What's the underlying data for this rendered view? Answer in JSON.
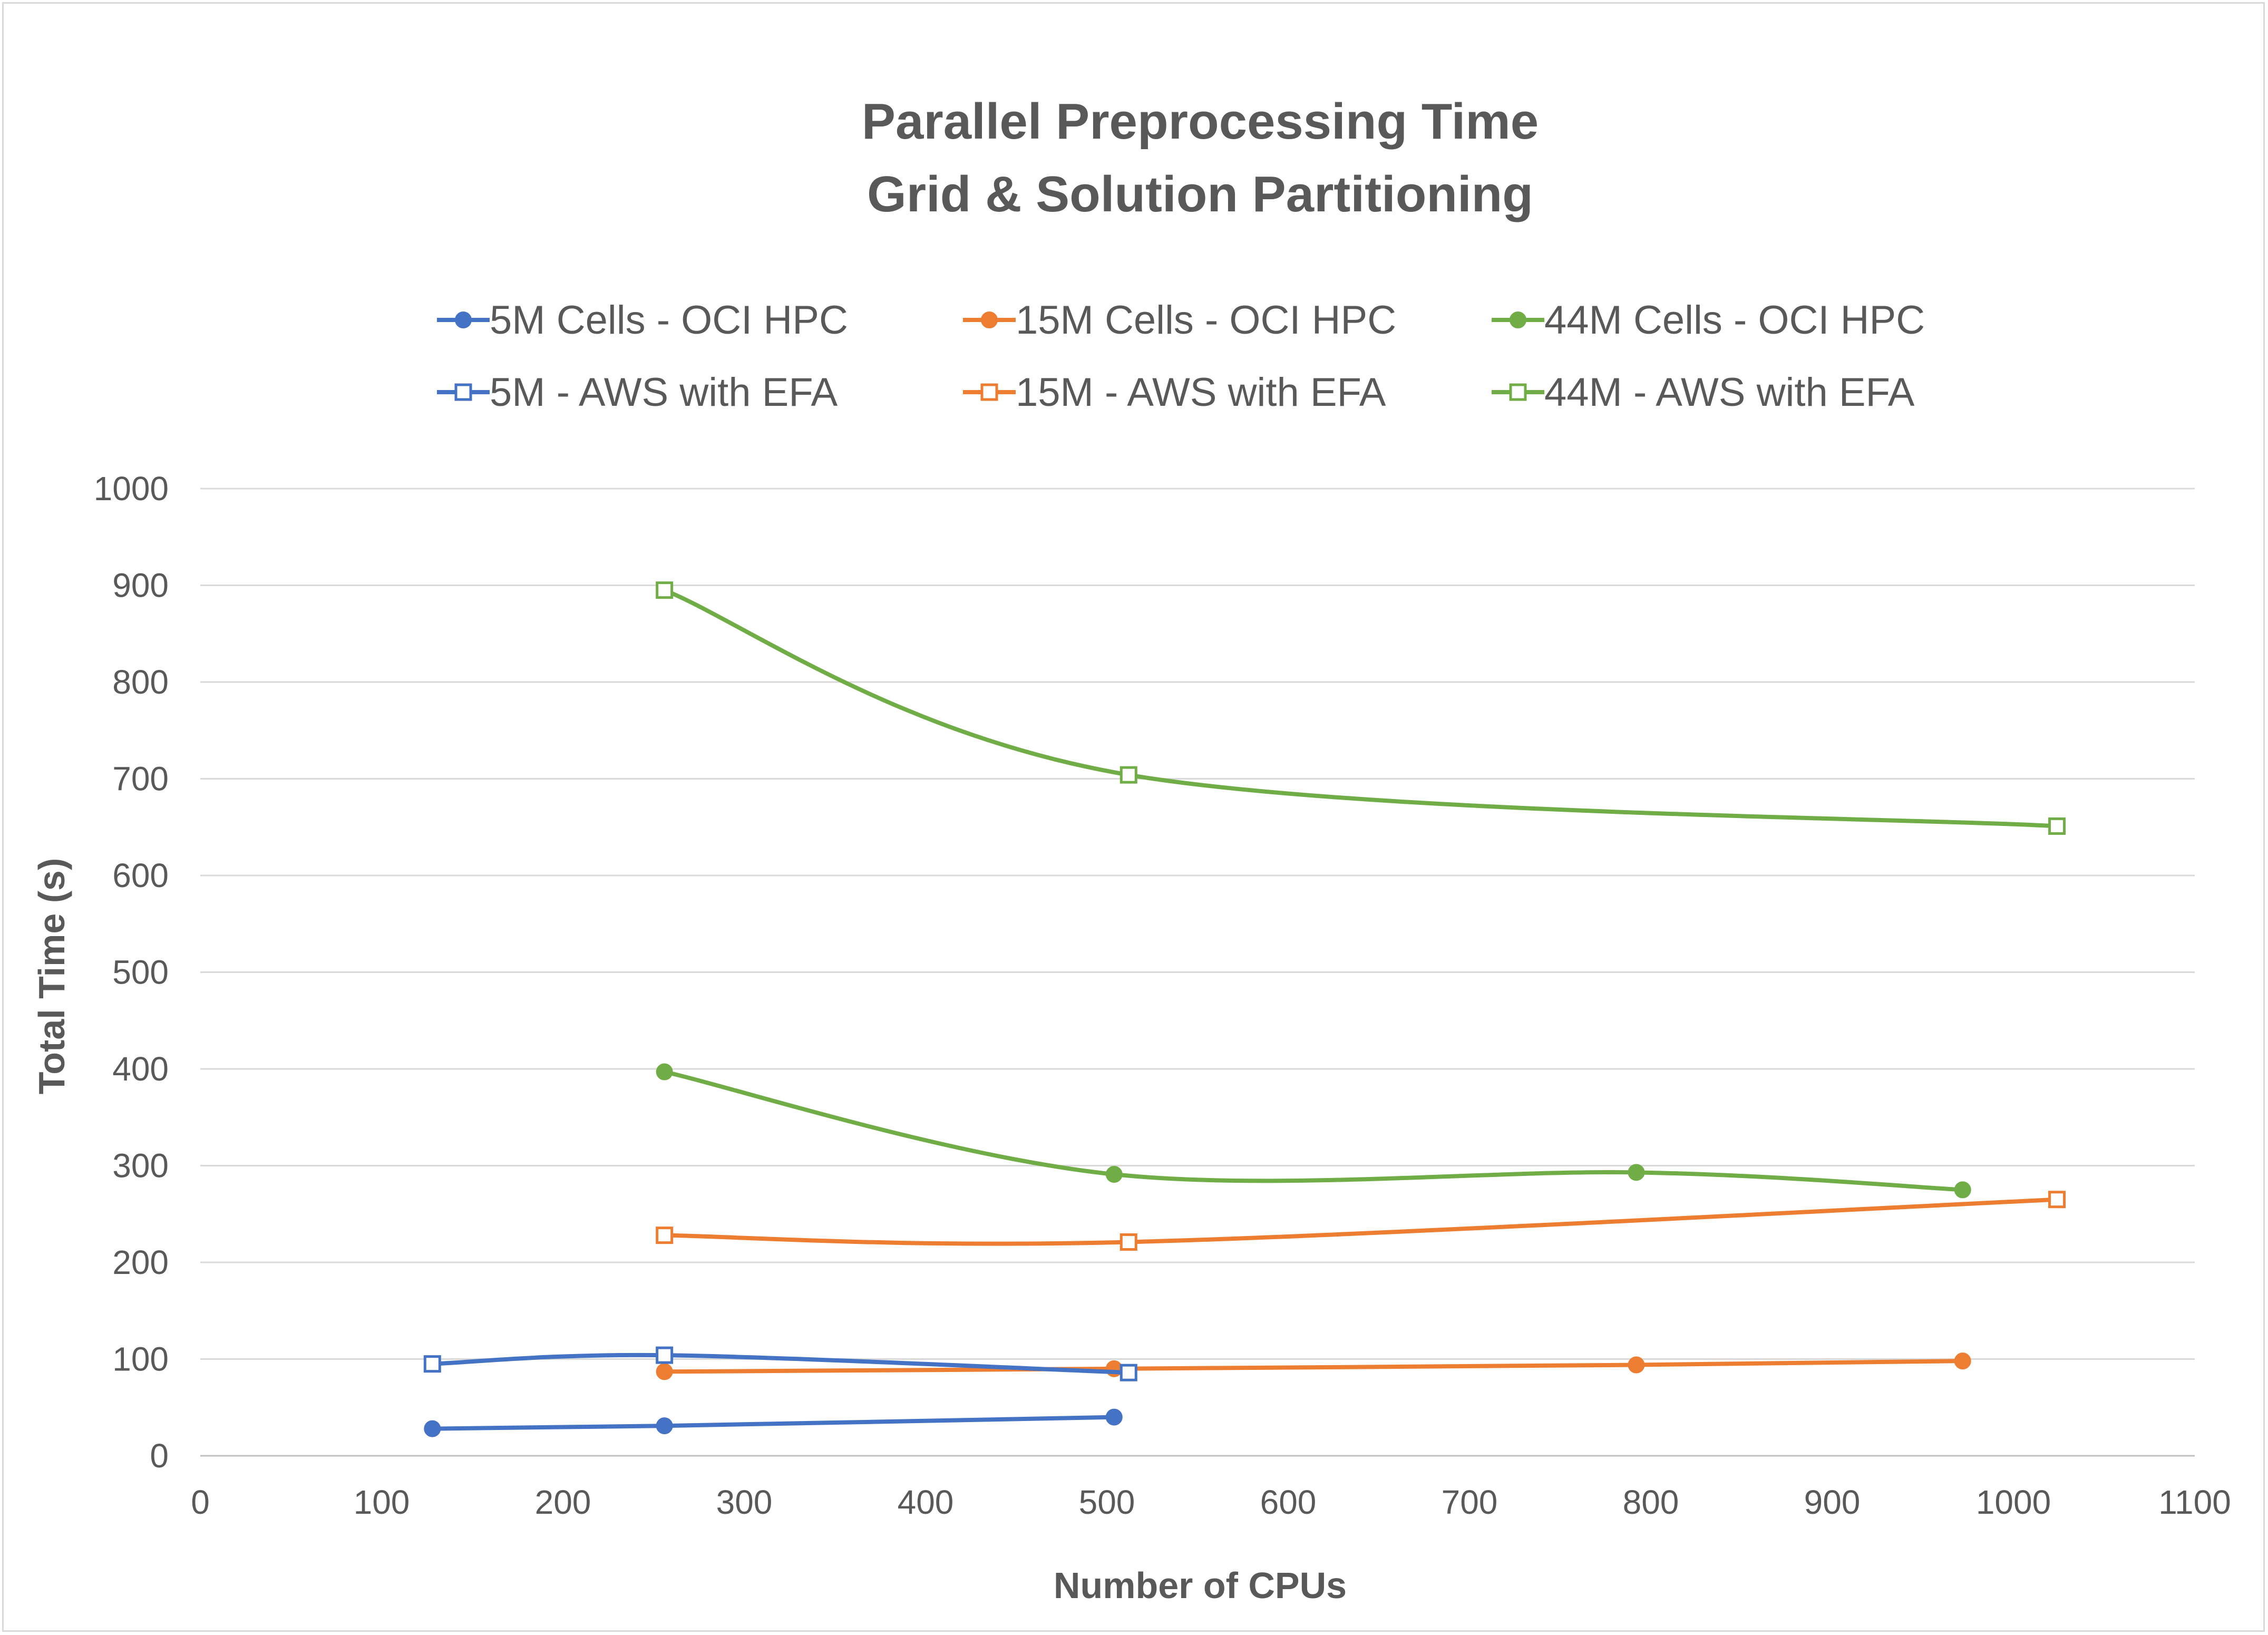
{
  "chart_data": {
    "type": "line",
    "title": [
      "Parallel Preprocessing Time",
      "Grid & Solution Partitioning"
    ],
    "xlabel": "Number of CPUs",
    "ylabel": "Total Time (s)",
    "xlim": [
      0,
      1100
    ],
    "ylim": [
      0,
      1000
    ],
    "xticks": [
      0,
      100,
      200,
      300,
      400,
      500,
      600,
      700,
      800,
      900,
      1000,
      1100
    ],
    "yticks": [
      0,
      100,
      200,
      300,
      400,
      500,
      600,
      700,
      800,
      900,
      1000
    ],
    "grid": "horizontal",
    "legend_position": "top",
    "smooth": true,
    "series": [
      {
        "name": "5M Cells - OCI HPC",
        "color": "#4472c4",
        "marker": "filled-circle",
        "x": [
          128,
          256,
          504
        ],
        "y": [
          28,
          31,
          40
        ]
      },
      {
        "name": "15M Cells - OCI HPC",
        "color": "#ed7d31",
        "marker": "filled-circle",
        "x": [
          256,
          504,
          792,
          972
        ],
        "y": [
          87,
          90,
          94,
          98
        ]
      },
      {
        "name": "44M Cells - OCI HPC",
        "color": "#70ad47",
        "marker": "filled-circle",
        "x": [
          256,
          504,
          792,
          972
        ],
        "y": [
          397,
          291,
          293,
          275
        ]
      },
      {
        "name": "5M - AWS with EFA",
        "color": "#4472c4",
        "marker": "hollow-square",
        "x": [
          128,
          256,
          512
        ],
        "y": [
          95,
          104,
          86
        ]
      },
      {
        "name": "15M - AWS with EFA",
        "color": "#ed7d31",
        "marker": "hollow-square",
        "x": [
          256,
          512,
          1024
        ],
        "y": [
          228,
          221,
          265
        ]
      },
      {
        "name": "44M - AWS with EFA",
        "color": "#70ad47",
        "marker": "hollow-square",
        "x": [
          256,
          512,
          1024
        ],
        "y": [
          895,
          704,
          651
        ]
      }
    ]
  }
}
